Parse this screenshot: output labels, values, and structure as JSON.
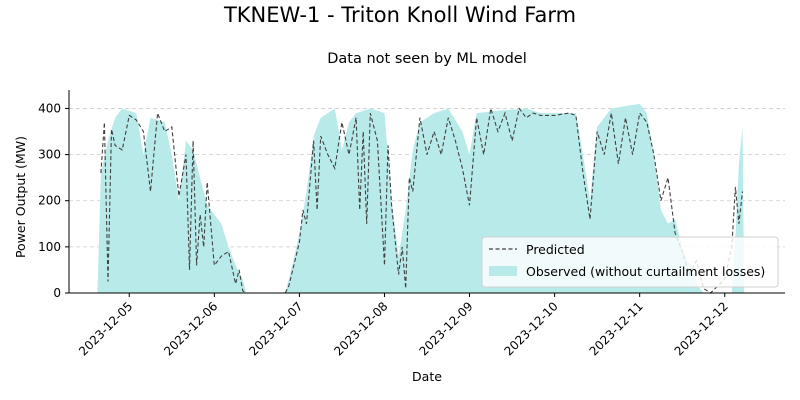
{
  "figure": {
    "suptitle": "TKNEW-1 - Triton Knoll Wind Farm"
  },
  "colors": {
    "observed_fill": "#b8eaea",
    "predicted_line": "#404040",
    "grid": "#cccccc",
    "axis": "#000000"
  },
  "chart_data": {
    "type": "area",
    "title": "Data not seen by ML model",
    "xlabel": "Date",
    "ylabel": "Power Output (MW)",
    "x_ticks": [
      "2023-12-05",
      "2023-12-06",
      "2023-12-07",
      "2023-12-08",
      "2023-12-09",
      "2023-12-10",
      "2023-12-11",
      "2023-12-12"
    ],
    "y_ticks": [
      0,
      100,
      200,
      300,
      400
    ],
    "ylim": [
      0,
      440
    ],
    "xlim": [
      "2023-12-04 07:00",
      "2023-12-12 17:00"
    ],
    "grid": "y-dashed",
    "legend_position": "lower-right",
    "series": [
      {
        "name": "Predicted",
        "style": "dashed-line",
        "points": [
          [
            "2023-12-04 16:00",
            260
          ],
          [
            "2023-12-04 17:00",
            370
          ],
          [
            "2023-12-04 18:00",
            25
          ],
          [
            "2023-12-04 19:00",
            355
          ],
          [
            "2023-12-04 20:00",
            320
          ],
          [
            "2023-12-04 22:00",
            310
          ],
          [
            "2023-12-05 00:00",
            385
          ],
          [
            "2023-12-05 02:00",
            375
          ],
          [
            "2023-12-05 04:00",
            350
          ],
          [
            "2023-12-05 06:00",
            220
          ],
          [
            "2023-12-05 08:00",
            390
          ],
          [
            "2023-12-05 10:00",
            350
          ],
          [
            "2023-12-05 12:00",
            360
          ],
          [
            "2023-12-05 14:00",
            210
          ],
          [
            "2023-12-05 16:00",
            300
          ],
          [
            "2023-12-05 17:00",
            50
          ],
          [
            "2023-12-05 18:00",
            330
          ],
          [
            "2023-12-05 19:00",
            60
          ],
          [
            "2023-12-05 20:00",
            170
          ],
          [
            "2023-12-05 21:00",
            100
          ],
          [
            "2023-12-05 22:00",
            240
          ],
          [
            "2023-12-06 00:00",
            60
          ],
          [
            "2023-12-06 02:00",
            80
          ],
          [
            "2023-12-06 04:00",
            90
          ],
          [
            "2023-12-06 06:00",
            20
          ],
          [
            "2023-12-06 07:00",
            50
          ],
          [
            "2023-12-06 08:00",
            5
          ],
          [
            "2023-12-06 09:00",
            0
          ],
          [
            "2023-12-06 20:00",
            0
          ],
          [
            "2023-12-06 21:00",
            15
          ],
          [
            "2023-12-07 00:00",
            110
          ],
          [
            "2023-12-07 01:00",
            180
          ],
          [
            "2023-12-07 02:00",
            150
          ],
          [
            "2023-12-07 04:00",
            330
          ],
          [
            "2023-12-07 05:00",
            180
          ],
          [
            "2023-12-07 06:00",
            340
          ],
          [
            "2023-12-07 08:00",
            300
          ],
          [
            "2023-12-07 10:00",
            270
          ],
          [
            "2023-12-07 12:00",
            370
          ],
          [
            "2023-12-07 14:00",
            300
          ],
          [
            "2023-12-07 16:00",
            380
          ],
          [
            "2023-12-07 17:00",
            180
          ],
          [
            "2023-12-07 18:00",
            350
          ],
          [
            "2023-12-07 19:00",
            150
          ],
          [
            "2023-12-07 20:00",
            390
          ],
          [
            "2023-12-07 22:00",
            330
          ],
          [
            "2023-12-08 00:00",
            60
          ],
          [
            "2023-12-08 01:00",
            320
          ],
          [
            "2023-12-08 02:00",
            190
          ],
          [
            "2023-12-08 04:00",
            40
          ],
          [
            "2023-12-08 05:00",
            100
          ],
          [
            "2023-12-08 06:00",
            10
          ],
          [
            "2023-12-08 07:00",
            250
          ],
          [
            "2023-12-08 08:00",
            220
          ],
          [
            "2023-12-08 10:00",
            380
          ],
          [
            "2023-12-08 12:00",
            300
          ],
          [
            "2023-12-08 14:00",
            350
          ],
          [
            "2023-12-08 16:00",
            300
          ],
          [
            "2023-12-08 18:00",
            380
          ],
          [
            "2023-12-08 20:00",
            330
          ],
          [
            "2023-12-08 22:00",
            270
          ],
          [
            "2023-12-09 00:00",
            190
          ],
          [
            "2023-12-09 02:00",
            380
          ],
          [
            "2023-12-09 04:00",
            300
          ],
          [
            "2023-12-09 06:00",
            400
          ],
          [
            "2023-12-09 08:00",
            350
          ],
          [
            "2023-12-09 10:00",
            390
          ],
          [
            "2023-12-09 12:00",
            330
          ],
          [
            "2023-12-09 14:00",
            400
          ],
          [
            "2023-12-09 16:00",
            380
          ],
          [
            "2023-12-09 18:00",
            390
          ],
          [
            "2023-12-09 20:00",
            385
          ],
          [
            "2023-12-10 00:00",
            385
          ],
          [
            "2023-12-10 04:00",
            390
          ],
          [
            "2023-12-10 06:00",
            385
          ],
          [
            "2023-12-10 08:00",
            260
          ],
          [
            "2023-12-10 10:00",
            160
          ],
          [
            "2023-12-10 12:00",
            350
          ],
          [
            "2023-12-10 14:00",
            300
          ],
          [
            "2023-12-10 16:00",
            390
          ],
          [
            "2023-12-10 18:00",
            280
          ],
          [
            "2023-12-10 20:00",
            380
          ],
          [
            "2023-12-10 22:00",
            300
          ],
          [
            "2023-12-11 00:00",
            390
          ],
          [
            "2023-12-11 02:00",
            370
          ],
          [
            "2023-12-11 04:00",
            300
          ],
          [
            "2023-12-11 06:00",
            200
          ],
          [
            "2023-12-11 08:00",
            250
          ],
          [
            "2023-12-11 10:00",
            130
          ],
          [
            "2023-12-11 12:00",
            90
          ],
          [
            "2023-12-11 14:00",
            40
          ],
          [
            "2023-12-11 16:00",
            70
          ],
          [
            "2023-12-11 18:00",
            10
          ],
          [
            "2023-12-11 20:00",
            0
          ],
          [
            "2023-12-12 00:00",
            30
          ],
          [
            "2023-12-12 02:00",
            100
          ],
          [
            "2023-12-12 03:00",
            230
          ],
          [
            "2023-12-12 04:00",
            150
          ],
          [
            "2023-12-12 05:00",
            220
          ]
        ]
      },
      {
        "name": "Observed (without curtailment losses)",
        "style": "filled-area",
        "points": [
          [
            "2023-12-04 15:00",
            0
          ],
          [
            "2023-12-04 16:00",
            260
          ],
          [
            "2023-12-04 18:00",
            330
          ],
          [
            "2023-12-04 20:00",
            380
          ],
          [
            "2023-12-04 22:00",
            400
          ],
          [
            "2023-12-05 02:00",
            390
          ],
          [
            "2023-12-05 04:00",
            300
          ],
          [
            "2023-12-05 06:00",
            380
          ],
          [
            "2023-12-05 10:00",
            370
          ],
          [
            "2023-12-05 12:00",
            300
          ],
          [
            "2023-12-05 14:00",
            200
          ],
          [
            "2023-12-05 16:00",
            330
          ],
          [
            "2023-12-05 18:00",
            310
          ],
          [
            "2023-12-05 20:00",
            250
          ],
          [
            "2023-12-05 22:00",
            190
          ],
          [
            "2023-12-06 00:00",
            170
          ],
          [
            "2023-12-06 02:00",
            150
          ],
          [
            "2023-12-06 04:00",
            100
          ],
          [
            "2023-12-06 06:00",
            60
          ],
          [
            "2023-12-06 08:00",
            30
          ],
          [
            "2023-12-06 09:00",
            0
          ],
          [
            "2023-12-06 20:00",
            0
          ],
          [
            "2023-12-06 22:00",
            60
          ],
          [
            "2023-12-07 00:00",
            130
          ],
          [
            "2023-12-07 02:00",
            220
          ],
          [
            "2023-12-07 04:00",
            340
          ],
          [
            "2023-12-07 06:00",
            380
          ],
          [
            "2023-12-07 10:00",
            400
          ],
          [
            "2023-12-07 12:00",
            310
          ],
          [
            "2023-12-07 14:00",
            370
          ],
          [
            "2023-12-07 16:00",
            390
          ],
          [
            "2023-12-07 20:00",
            400
          ],
          [
            "2023-12-08 00:00",
            390
          ],
          [
            "2023-12-08 02:00",
            200
          ],
          [
            "2023-12-08 04:00",
            80
          ],
          [
            "2023-12-08 06:00",
            180
          ],
          [
            "2023-12-08 08:00",
            310
          ],
          [
            "2023-12-08 10:00",
            370
          ],
          [
            "2023-12-08 14:00",
            390
          ],
          [
            "2023-12-08 18:00",
            400
          ],
          [
            "2023-12-08 22:00",
            350
          ],
          [
            "2023-12-09 00:00",
            300
          ],
          [
            "2023-12-09 02:00",
            390
          ],
          [
            "2023-12-09 08:00",
            395
          ],
          [
            "2023-12-09 16:00",
            400
          ],
          [
            "2023-12-09 20:00",
            390
          ],
          [
            "2023-12-10 06:00",
            390
          ],
          [
            "2023-12-10 08:00",
            300
          ],
          [
            "2023-12-10 10:00",
            200
          ],
          [
            "2023-12-10 12:00",
            360
          ],
          [
            "2023-12-10 16:00",
            400
          ],
          [
            "2023-12-11 00:00",
            410
          ],
          [
            "2023-12-11 02:00",
            390
          ],
          [
            "2023-12-11 04:00",
            300
          ],
          [
            "2023-12-11 06:00",
            180
          ],
          [
            "2023-12-11 08:00",
            150
          ],
          [
            "2023-12-11 10:00",
            160
          ],
          [
            "2023-12-11 12:00",
            100
          ],
          [
            "2023-12-11 14:00",
            60
          ],
          [
            "2023-12-11 16:00",
            20
          ],
          [
            "2023-12-11 18:00",
            0
          ],
          [
            "2023-12-12 02:00",
            0
          ],
          [
            "2023-12-12 03:00",
            120
          ],
          [
            "2023-12-12 04:00",
            280
          ],
          [
            "2023-12-12 05:00",
            360
          ],
          [
            "2023-12-12 05:30",
            0
          ]
        ]
      }
    ]
  }
}
